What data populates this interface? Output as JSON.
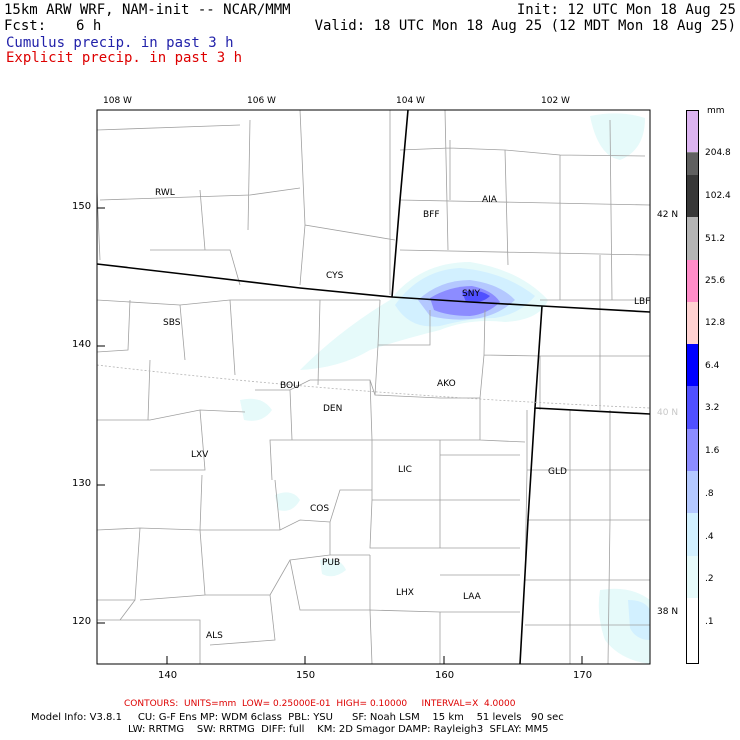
{
  "header": {
    "model": "15km ARW WRF, NAM-init -- NCAR/MMM",
    "init": "Init: 12 UTC Mon 18 Aug 25",
    "fcst_label": "Fcst:",
    "fcst_value": "6 h",
    "valid": "Valid: 18 UTC Mon 18 Aug 25 (12 MDT Mon 18 Aug 25)",
    "cumulus": "Cumulus precip. in past 3 h",
    "explicit": "Explicit precip. in past 3 h",
    "cumulus_color": "#2222aa",
    "explicit_color": "#dd0000"
  },
  "map": {
    "lon_labels": [
      "108 W",
      "106 W",
      "104 W",
      "102 W"
    ],
    "lat_labels": [
      "42 N",
      "40 N",
      "38 N"
    ],
    "x_ticks": [
      "140",
      "150",
      "160",
      "170"
    ],
    "y_ticks": [
      "150",
      "140",
      "130",
      "120"
    ],
    "stations": [
      {
        "id": "RWL"
      },
      {
        "id": "CYS"
      },
      {
        "id": "BFF"
      },
      {
        "id": "AIA"
      },
      {
        "id": "SNY"
      },
      {
        "id": "LBF"
      },
      {
        "id": "SBS"
      },
      {
        "id": "BOU"
      },
      {
        "id": "DEN"
      },
      {
        "id": "AKO"
      },
      {
        "id": "LXV"
      },
      {
        "id": "LIC"
      },
      {
        "id": "GLD"
      },
      {
        "id": "COS"
      },
      {
        "id": "PUB"
      },
      {
        "id": "LHX"
      },
      {
        "id": "LAA"
      },
      {
        "id": "ALS"
      }
    ]
  },
  "colorbar": {
    "unit": "mm",
    "labels": [
      "204.8",
      "102.4",
      "51.2",
      "25.6",
      "12.8",
      "6.4",
      "3.2",
      "1.6",
      ".8",
      ".4",
      ".2",
      ".1"
    ],
    "colors": [
      "#dcb4f0",
      "#606060",
      "#383838",
      "#b4b4b4",
      "#ff8cc8",
      "#ffd2d2",
      "#0000ff",
      "#5050ff",
      "#8c8cff",
      "#b4c8ff",
      "#d2f0ff",
      "#e6fafa",
      "#ffffff"
    ]
  },
  "footer": {
    "contours": "CONTOURS:  UNITS=mm  LOW= 0.25000E-01  HIGH= 0.10000     INTERVAL=X  4.0000",
    "model_info_1": "Model Info: V3.8.1     CU: G-F Ens MP: WDM 6class  PBL: YSU      SF: Noah LSM    15 km    51 levels   90 sec",
    "model_info_2": "LW: RRTMG    SW: RRTMG  DIFF: full    KM: 2D Smagor DAMP: Rayleigh3  SFLAY: MM5"
  }
}
